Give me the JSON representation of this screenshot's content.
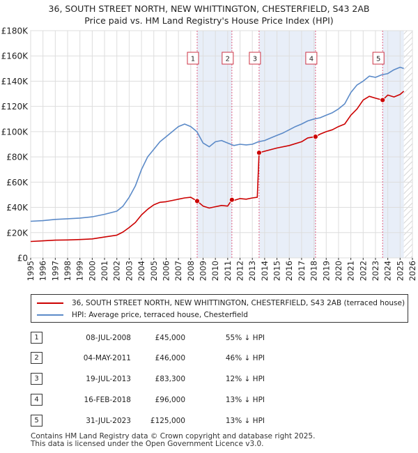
{
  "chart_data": {
    "type": "line",
    "title": "36, SOUTH STREET NORTH, NEW WHITTINGTON, CHESTERFIELD, S43 2AB",
    "subtitle": "Price paid vs. HM Land Registry's House Price Index (HPI)",
    "xlabel": "",
    "ylabel": "",
    "xlim": [
      1995,
      2026
    ],
    "ylim": [
      0,
      180000
    ],
    "y_ticks": [
      0,
      20000,
      40000,
      60000,
      80000,
      100000,
      120000,
      140000,
      160000,
      180000
    ],
    "y_tick_labels": [
      "£0",
      "£20K",
      "£40K",
      "£60K",
      "£80K",
      "£100K",
      "£120K",
      "£140K",
      "£160K",
      "£180K"
    ],
    "x_ticks": [
      1995,
      1996,
      1997,
      1998,
      1999,
      2000,
      2001,
      2002,
      2003,
      2004,
      2005,
      2006,
      2007,
      2008,
      2009,
      2010,
      2011,
      2012,
      2013,
      2014,
      2015,
      2016,
      2017,
      2018,
      2019,
      2020,
      2021,
      2022,
      2023,
      2024,
      2025,
      2026
    ],
    "x_tick_labels": [
      "1995",
      "1996",
      "1997",
      "1998",
      "1999",
      "2000",
      "2001",
      "2002",
      "2003",
      "2004",
      "2005",
      "2006",
      "2007",
      "2008",
      "2009",
      "2010",
      "2011",
      "2012",
      "2013",
      "2014",
      "2015",
      "2016",
      "2017",
      "2018",
      "2019",
      "2020",
      "2021",
      "2022",
      "2023",
      "2024",
      "2025",
      "2026"
    ],
    "grid": true,
    "shaded_spans": [
      [
        2008.52,
        2011.34
      ],
      [
        2013.55,
        2018.13
      ],
      [
        2023.58,
        2025.3
      ]
    ],
    "hatched_from": 2025.3,
    "series": [
      {
        "name": "36, SOUTH STREET NORTH, NEW WHITTINGTON, CHESTERFIELD, S43 2AB (terraced house)",
        "color": "#cc0000",
        "x": [
          1995,
          1996,
          1997,
          1998,
          1999,
          2000,
          2001,
          2002,
          2002.5,
          2003,
          2003.5,
          2004,
          2004.5,
          2005,
          2005.5,
          2006,
          2006.5,
          2007,
          2007.5,
          2008,
          2008.52,
          2009,
          2009.5,
          2010,
          2010.5,
          2011,
          2011.34,
          2011.5,
          2012,
          2012.5,
          2013,
          2013.4,
          2013.55,
          2014,
          2015,
          2016,
          2017,
          2017.5,
          2018.13,
          2018.5,
          2019,
          2019.5,
          2020,
          2020.5,
          2021,
          2021.5,
          2022,
          2022.5,
          2023,
          2023.58,
          2024,
          2024.5,
          2025,
          2025.3
        ],
        "y": [
          13000,
          13500,
          14000,
          14200,
          14500,
          15000,
          16500,
          18000,
          20500,
          24000,
          28000,
          34000,
          38500,
          42000,
          44000,
          44500,
          45500,
          46500,
          47500,
          48000,
          45000,
          41000,
          39500,
          40500,
          41500,
          41000,
          46000,
          45500,
          47000,
          46500,
          47500,
          48000,
          83300,
          84500,
          87000,
          89000,
          92000,
          95000,
          96000,
          98000,
          100000,
          101500,
          104000,
          106000,
          113000,
          118000,
          125000,
          128000,
          126500,
          125000,
          129000,
          127500,
          129500,
          132000
        ]
      },
      {
        "name": "HPI: Average price, terraced house, Chesterfield",
        "color": "#5b8ac8",
        "x": [
          1995,
          1996,
          1997,
          1998,
          1999,
          2000,
          2001,
          2002,
          2002.5,
          2003,
          2003.5,
          2004,
          2004.5,
          2005,
          2005.5,
          2006,
          2006.5,
          2007,
          2007.5,
          2008,
          2008.5,
          2009,
          2009.5,
          2010,
          2010.5,
          2011,
          2011.5,
          2012,
          2012.5,
          2013,
          2013.5,
          2014,
          2014.5,
          2015,
          2015.5,
          2016,
          2016.5,
          2017,
          2017.5,
          2018,
          2018.5,
          2019,
          2019.5,
          2020,
          2020.5,
          2021,
          2021.5,
          2022,
          2022.5,
          2023,
          2023.5,
          2024,
          2024.5,
          2025,
          2025.3
        ],
        "y": [
          29000,
          29500,
          30500,
          31000,
          31500,
          32500,
          34500,
          37000,
          41000,
          48000,
          57000,
          70000,
          80000,
          86000,
          92000,
          96000,
          100000,
          104000,
          106000,
          104000,
          100000,
          91000,
          88000,
          92000,
          93000,
          91000,
          89000,
          90000,
          89500,
          90000,
          92000,
          93000,
          95000,
          97000,
          99000,
          101500,
          104000,
          106000,
          108500,
          110000,
          111000,
          113000,
          115000,
          118000,
          122000,
          131000,
          137000,
          140000,
          144000,
          143000,
          145000,
          146000,
          149000,
          151000,
          150000
        ]
      }
    ],
    "sales": [
      {
        "id": "1",
        "x": 2008.52,
        "price": 45000
      },
      {
        "id": "2",
        "x": 2011.34,
        "price": 46000
      },
      {
        "id": "3",
        "x": 2013.55,
        "price": 83300
      },
      {
        "id": "4",
        "x": 2018.13,
        "price": 96000
      },
      {
        "id": "5",
        "x": 2023.58,
        "price": 125000
      }
    ],
    "colors": {
      "property": "#cc0000",
      "hpi": "#5b8ac8",
      "shade": "#e8eef8",
      "marker_line": "#e06080",
      "grid": "#dddddd",
      "plot_bg": "#ffffff"
    }
  },
  "legend": {
    "property_label": "36, SOUTH STREET NORTH, NEW WHITTINGTON, CHESTERFIELD, S43 2AB (terraced house)",
    "hpi_label": "HPI: Average price, terraced house, Chesterfield"
  },
  "sales_table": [
    {
      "num": "1",
      "date": "08-JUL-2008",
      "price": "£45,000",
      "hpi": "55% ↓ HPI"
    },
    {
      "num": "2",
      "date": "04-MAY-2011",
      "price": "£46,000",
      "hpi": "46% ↓ HPI"
    },
    {
      "num": "3",
      "date": "19-JUL-2013",
      "price": "£83,300",
      "hpi": "12% ↓ HPI"
    },
    {
      "num": "4",
      "date": "16-FEB-2018",
      "price": "£96,000",
      "hpi": "13% ↓ HPI"
    },
    {
      "num": "5",
      "date": "31-JUL-2023",
      "price": "£125,000",
      "hpi": "13% ↓ HPI"
    }
  ],
  "footer": {
    "line1": "Contains HM Land Registry data © Crown copyright and database right 2025.",
    "line2": "This data is licensed under the Open Government Licence v3.0."
  }
}
